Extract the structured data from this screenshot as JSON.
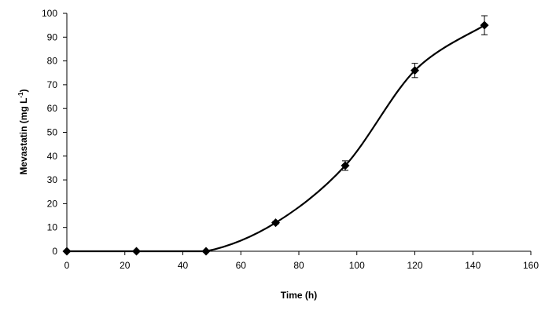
{
  "chart_data": {
    "type": "scatter",
    "title": "",
    "xlabel": "Time (h)",
    "ylabel_main": "Mevastatin (mg L",
    "ylabel_sup": "-1",
    "ylabel_close": ")",
    "xlim": [
      0,
      160
    ],
    "ylim": [
      0,
      100
    ],
    "xticks": [
      0,
      20,
      40,
      60,
      80,
      100,
      120,
      140,
      160
    ],
    "yticks": [
      0,
      10,
      20,
      30,
      40,
      50,
      60,
      70,
      80,
      90,
      100
    ],
    "grid": false,
    "legend": "none",
    "series": [
      {
        "x": [
          0,
          24,
          48,
          72,
          96,
          120,
          144
        ],
        "y": [
          0,
          0,
          0,
          12,
          36,
          76,
          95
        ],
        "error": [
          0,
          0,
          0,
          0.6,
          2,
          3,
          4
        ],
        "marker": "filled-diamond",
        "line": "smoothed",
        "color": "#000000"
      }
    ]
  }
}
